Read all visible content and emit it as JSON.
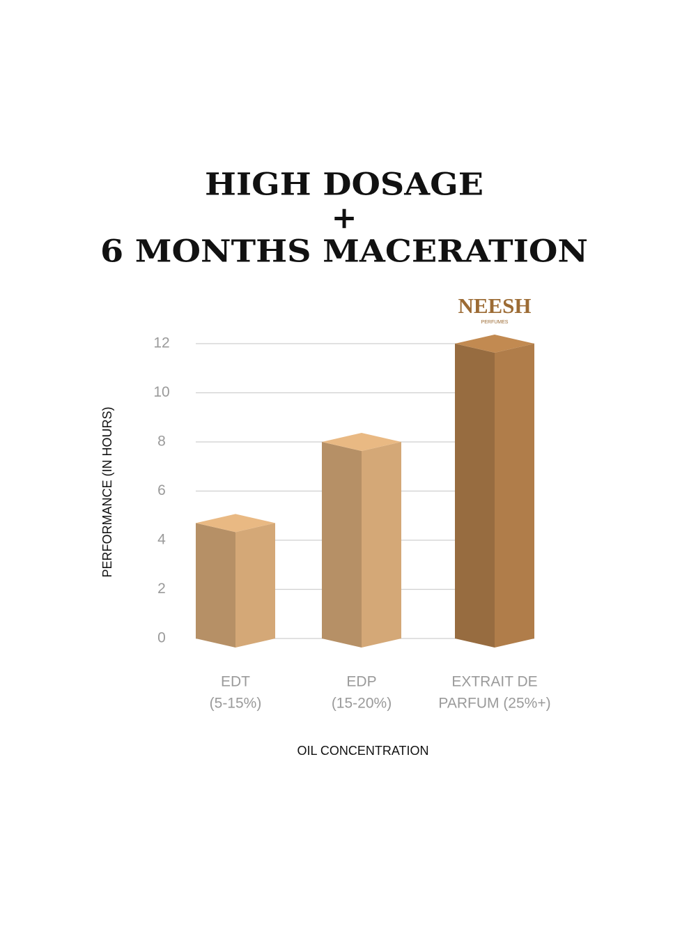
{
  "chart_data": {
    "type": "bar3d",
    "title": [
      "HIGH DOSAGE",
      "+",
      "6 MONTHS MACERATION"
    ],
    "brand": {
      "name": "NEESH",
      "tagline": "PERFUMES"
    },
    "y_label": "PERFORMANCE (IN HOURS)",
    "x_label": "OIL CONCENTRATION",
    "categories": [
      [
        "EDT",
        "(5-15%)"
      ],
      [
        "EDP",
        "(15-20%)"
      ],
      [
        "EXTRAIT DE",
        "PARFUM (25%+)"
      ]
    ],
    "values": [
      4.7,
      8,
      12
    ],
    "colors": [
      "#d4a877",
      "#d4a877",
      "#b07d4a"
    ],
    "ylim": [
      0,
      12
    ],
    "yticks": [
      0,
      2,
      4,
      6,
      8,
      10,
      12
    ],
    "grid": true
  }
}
